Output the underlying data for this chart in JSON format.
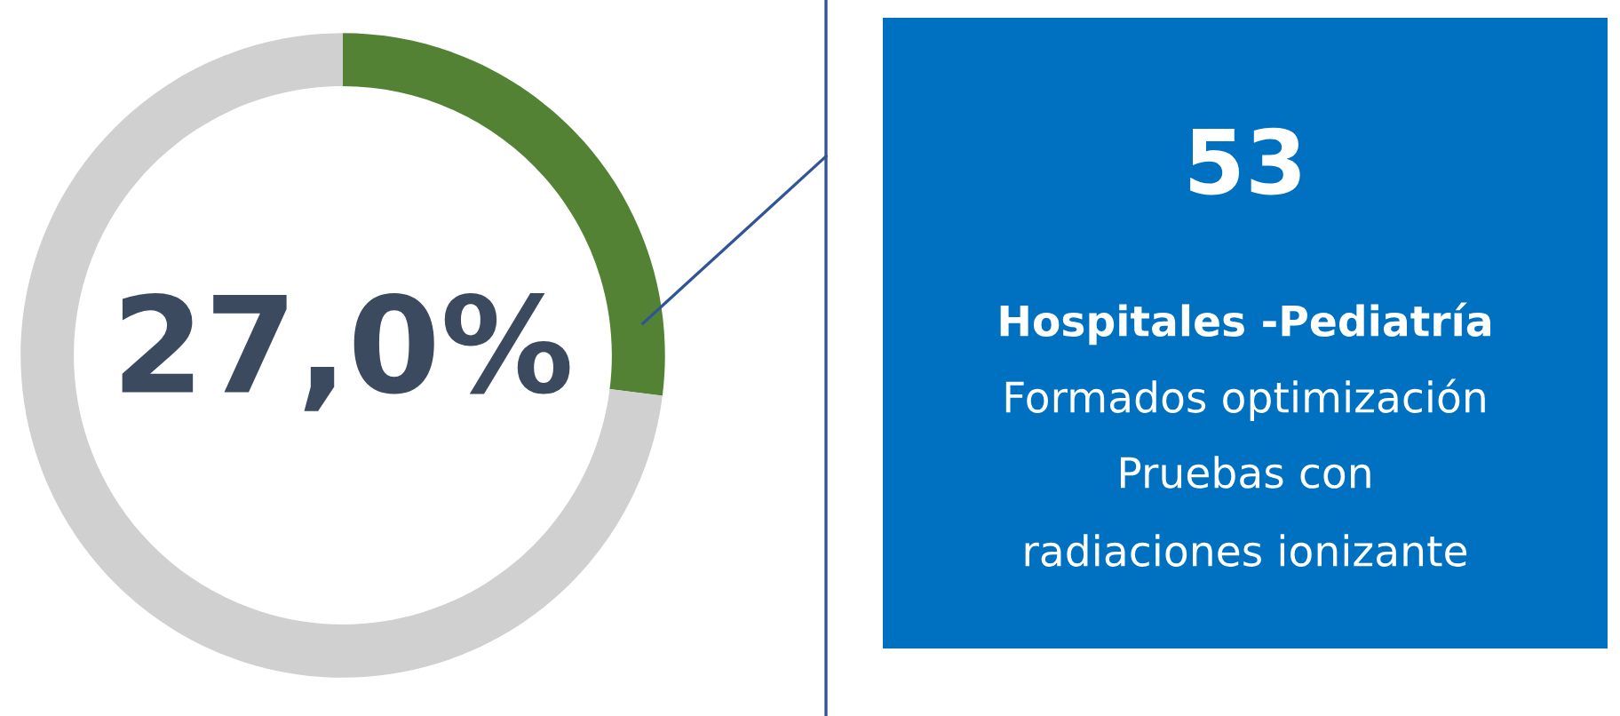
{
  "chart_data": [
    {
      "type": "donut",
      "categories": [
        null,
        null
      ],
      "values": [
        27,
        73
      ],
      "colors": [
        "#548235",
        "#d0d0d0"
      ],
      "value_labels": [
        "27,0%",
        null
      ]
    },
    {
      "type": "other",
      "color": "#0070c0",
      "title": "53",
      "subtitle": "Hospitales -Pediatría",
      "annotations": [
        "Formados optimización",
        "Pruebas con",
        "radiaciones ionizante"
      ]
    }
  ]
}
